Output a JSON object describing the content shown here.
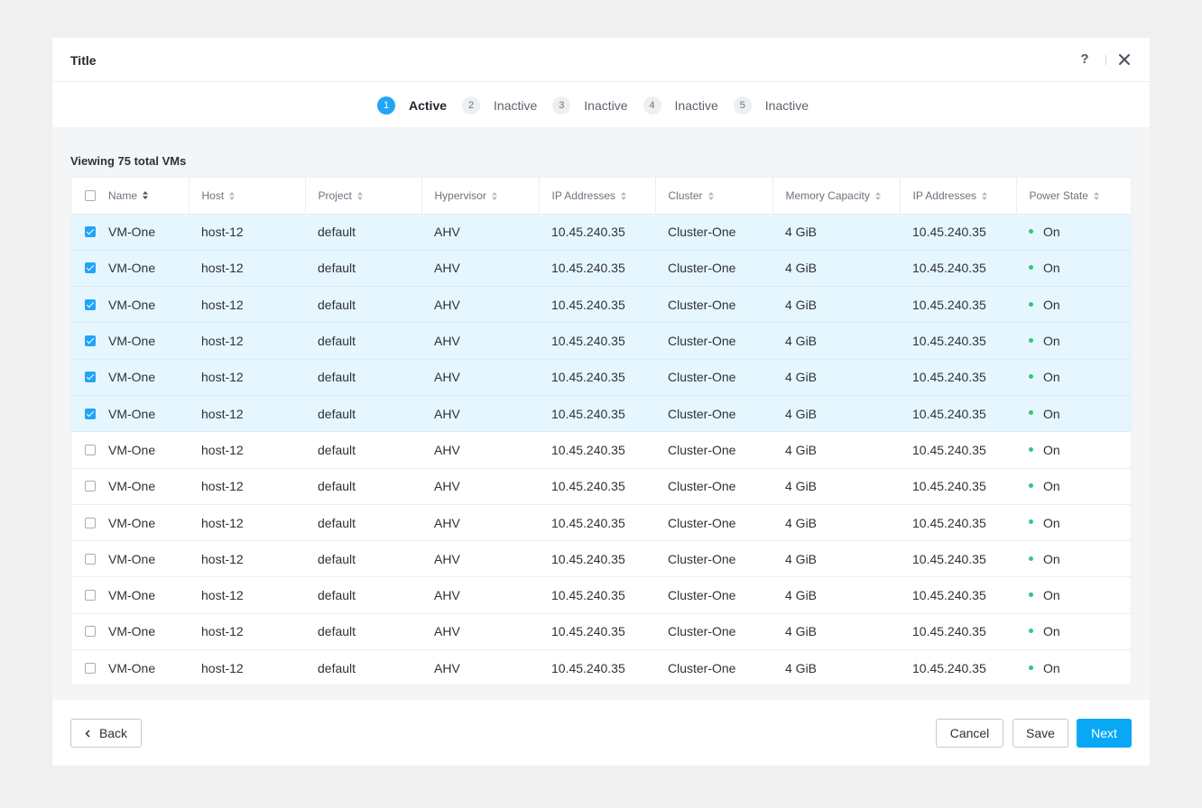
{
  "modal": {
    "title": "Title"
  },
  "header": {
    "help_label": "?"
  },
  "stepper": {
    "steps": [
      {
        "number": "1",
        "label": "Active",
        "active": true
      },
      {
        "number": "2",
        "label": "Inactive",
        "active": false
      },
      {
        "number": "3",
        "label": "Inactive",
        "active": false
      },
      {
        "number": "4",
        "label": "Inactive",
        "active": false
      },
      {
        "number": "5",
        "label": "Inactive",
        "active": false
      }
    ]
  },
  "table": {
    "summary": "Viewing 75 total VMs",
    "columns": [
      {
        "key": "name",
        "label": "Name"
      },
      {
        "key": "host",
        "label": "Host"
      },
      {
        "key": "project",
        "label": "Project"
      },
      {
        "key": "hypervisor",
        "label": "Hypervisor"
      },
      {
        "key": "ip1",
        "label": "IP Addresses"
      },
      {
        "key": "cluster",
        "label": "Cluster"
      },
      {
        "key": "memory",
        "label": "Memory Capacity"
      },
      {
        "key": "ip2",
        "label": "IP Addresses"
      },
      {
        "key": "power",
        "label": "Power State"
      }
    ],
    "rows": [
      {
        "selected": true,
        "name": "VM-One",
        "host": "host-12",
        "project": "default",
        "hypervisor": "AHV",
        "ip1": "10.45.240.35",
        "cluster": "Cluster-One",
        "memory": "4 GiB",
        "ip2": "10.45.240.35",
        "power": "On"
      },
      {
        "selected": true,
        "name": "VM-One",
        "host": "host-12",
        "project": "default",
        "hypervisor": "AHV",
        "ip1": "10.45.240.35",
        "cluster": "Cluster-One",
        "memory": "4 GiB",
        "ip2": "10.45.240.35",
        "power": "On"
      },
      {
        "selected": true,
        "name": "VM-One",
        "host": "host-12",
        "project": "default",
        "hypervisor": "AHV",
        "ip1": "10.45.240.35",
        "cluster": "Cluster-One",
        "memory": "4 GiB",
        "ip2": "10.45.240.35",
        "power": "On"
      },
      {
        "selected": true,
        "name": "VM-One",
        "host": "host-12",
        "project": "default",
        "hypervisor": "AHV",
        "ip1": "10.45.240.35",
        "cluster": "Cluster-One",
        "memory": "4 GiB",
        "ip2": "10.45.240.35",
        "power": "On"
      },
      {
        "selected": true,
        "name": "VM-One",
        "host": "host-12",
        "project": "default",
        "hypervisor": "AHV",
        "ip1": "10.45.240.35",
        "cluster": "Cluster-One",
        "memory": "4 GiB",
        "ip2": "10.45.240.35",
        "power": "On"
      },
      {
        "selected": true,
        "name": "VM-One",
        "host": "host-12",
        "project": "default",
        "hypervisor": "AHV",
        "ip1": "10.45.240.35",
        "cluster": "Cluster-One",
        "memory": "4 GiB",
        "ip2": "10.45.240.35",
        "power": "On"
      },
      {
        "selected": false,
        "name": "VM-One",
        "host": "host-12",
        "project": "default",
        "hypervisor": "AHV",
        "ip1": "10.45.240.35",
        "cluster": "Cluster-One",
        "memory": "4 GiB",
        "ip2": "10.45.240.35",
        "power": "On"
      },
      {
        "selected": false,
        "name": "VM-One",
        "host": "host-12",
        "project": "default",
        "hypervisor": "AHV",
        "ip1": "10.45.240.35",
        "cluster": "Cluster-One",
        "memory": "4 GiB",
        "ip2": "10.45.240.35",
        "power": "On"
      },
      {
        "selected": false,
        "name": "VM-One",
        "host": "host-12",
        "project": "default",
        "hypervisor": "AHV",
        "ip1": "10.45.240.35",
        "cluster": "Cluster-One",
        "memory": "4 GiB",
        "ip2": "10.45.240.35",
        "power": "On"
      },
      {
        "selected": false,
        "name": "VM-One",
        "host": "host-12",
        "project": "default",
        "hypervisor": "AHV",
        "ip1": "10.45.240.35",
        "cluster": "Cluster-One",
        "memory": "4 GiB",
        "ip2": "10.45.240.35",
        "power": "On"
      },
      {
        "selected": false,
        "name": "VM-One",
        "host": "host-12",
        "project": "default",
        "hypervisor": "AHV",
        "ip1": "10.45.240.35",
        "cluster": "Cluster-One",
        "memory": "4 GiB",
        "ip2": "10.45.240.35",
        "power": "On"
      },
      {
        "selected": false,
        "name": "VM-One",
        "host": "host-12",
        "project": "default",
        "hypervisor": "AHV",
        "ip1": "10.45.240.35",
        "cluster": "Cluster-One",
        "memory": "4 GiB",
        "ip2": "10.45.240.35",
        "power": "On"
      },
      {
        "selected": false,
        "name": "VM-One",
        "host": "host-12",
        "project": "default",
        "hypervisor": "AHV",
        "ip1": "10.45.240.35",
        "cluster": "Cluster-One",
        "memory": "4 GiB",
        "ip2": "10.45.240.35",
        "power": "On"
      }
    ]
  },
  "footer": {
    "back_label": "Back",
    "cancel_label": "Cancel",
    "save_label": "Save",
    "next_label": "Next"
  },
  "colors": {
    "accent": "#22a5f7",
    "primary_button": "#08a8f5",
    "selected_row": "#e6f6ff",
    "status_on": "#2fc97a"
  },
  "icons": {
    "help": "help-icon",
    "close": "close-icon",
    "sort": "sort-icon",
    "back": "chevron-left-icon",
    "status": "status-dot-icon"
  }
}
